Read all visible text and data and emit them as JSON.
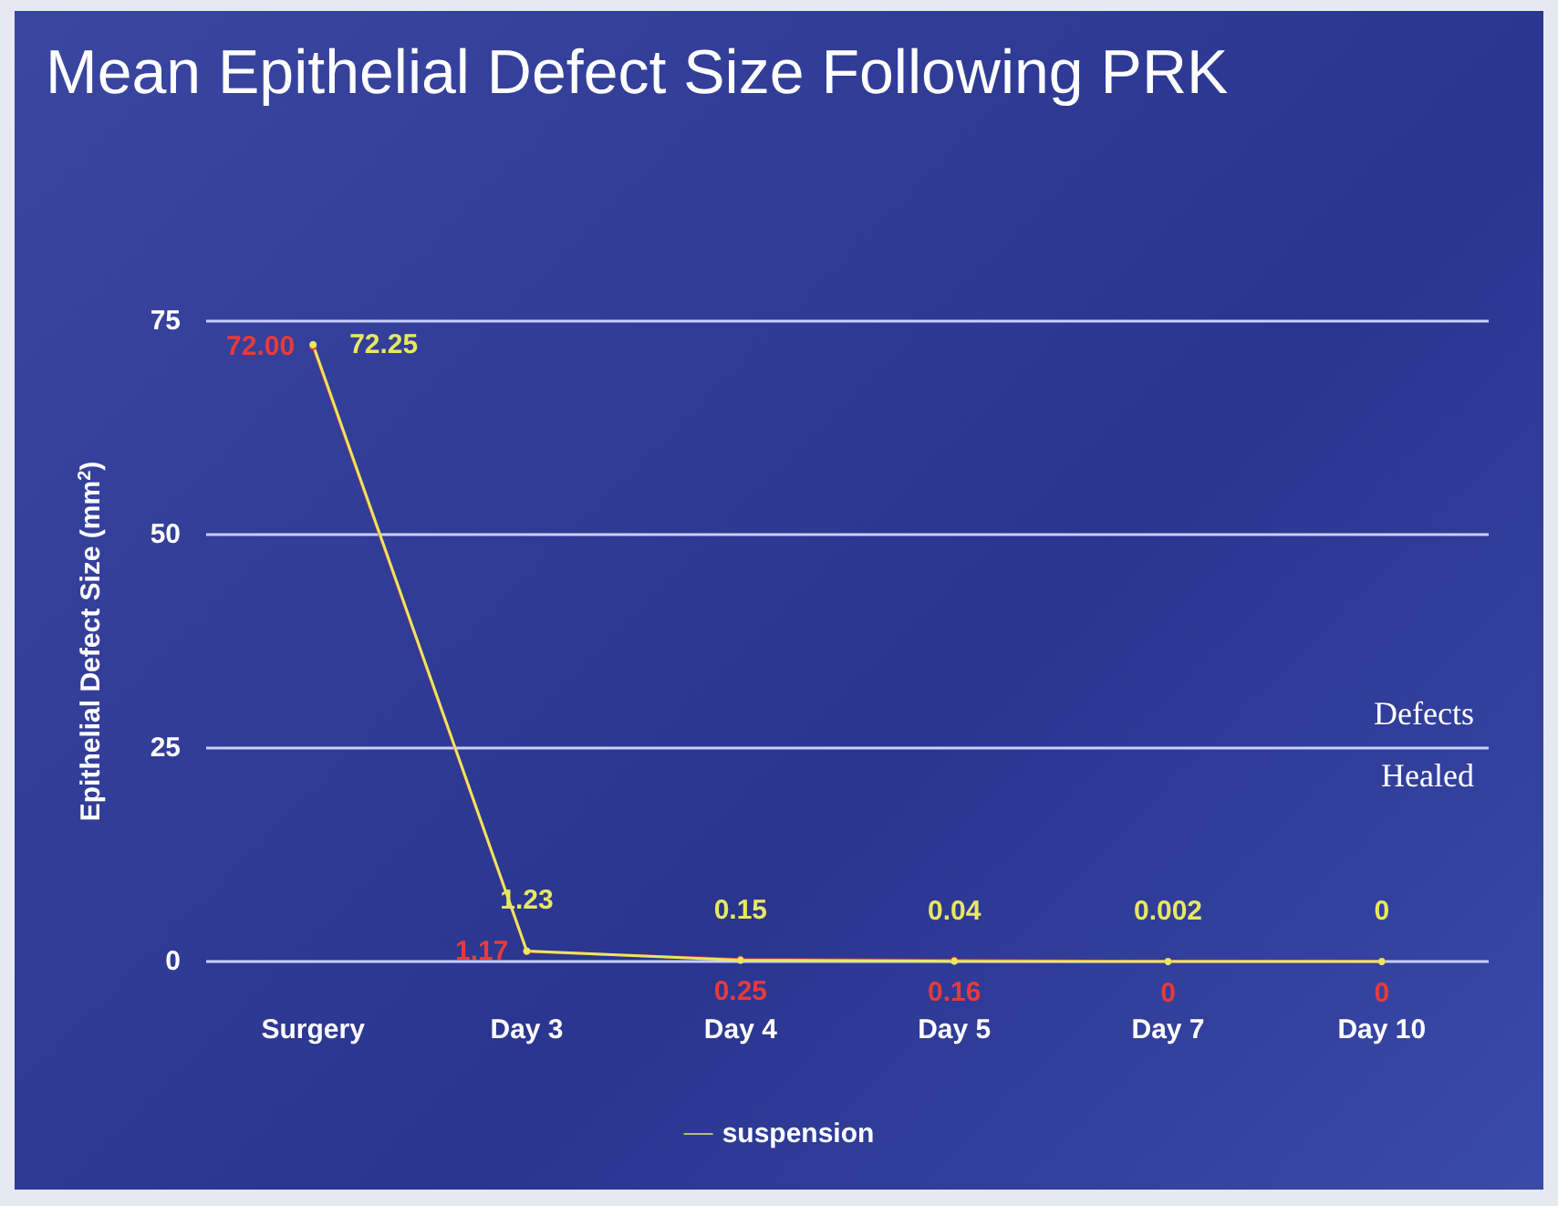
{
  "chart_data": {
    "type": "line",
    "title": "Mean Epithelial Defect Size Following PRK",
    "ylabel": "Epithelial Defect Size (mm$^{2}$)",
    "categories": [
      "Surgery",
      "Day 3",
      "Day 4",
      "Day 5",
      "Day 7",
      "Day 10"
    ],
    "series": [
      {
        "color": "#e83a3a",
        "values": [
          72.0,
          1.17,
          0.25,
          0.16,
          0,
          0
        ],
        "value_labels": [
          "72.00",
          "1.17",
          "0.25",
          "0.16",
          "0",
          "0"
        ]
      },
      {
        "name": "suspension",
        "color": "#e8e860",
        "values": [
          72.25,
          1.23,
          0.15,
          0.04,
          0.002,
          0
        ],
        "value_labels": [
          "72.25",
          "1.23",
          "0.15",
          "0.04",
          "0.002",
          "0"
        ]
      }
    ],
    "ylim": [
      0,
      75
    ],
    "yticks": [
      0,
      25,
      50,
      75
    ],
    "grid": "y",
    "legend": "bottom",
    "marker": "circle",
    "line_style": "solid",
    "annotations": [
      "Defects",
      "Healed"
    ]
  }
}
